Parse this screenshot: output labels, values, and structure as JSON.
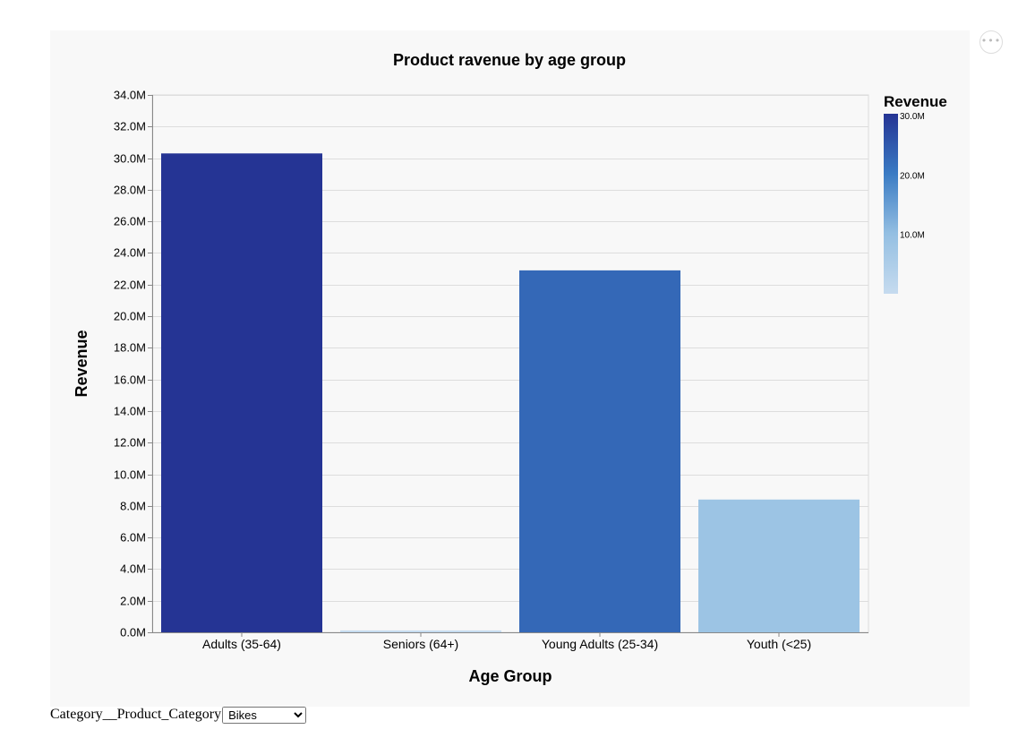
{
  "chart_data": {
    "type": "bar",
    "title": "Product ravenue by age group",
    "xlabel": "Age Group",
    "ylabel": "Revenue",
    "categories": [
      "Adults (35-64)",
      "Seniors (64+)",
      "Young Adults (25-34)",
      "Youth (<25)"
    ],
    "values": [
      30300000,
      120000,
      22900000,
      8400000
    ],
    "ylim": [
      0,
      34000000
    ],
    "yticks": [
      0,
      2000000,
      4000000,
      6000000,
      8000000,
      10000000,
      12000000,
      14000000,
      16000000,
      18000000,
      20000000,
      22000000,
      24000000,
      26000000,
      28000000,
      30000000,
      32000000,
      34000000
    ],
    "ytick_labels": [
      "0.0M",
      "2.0M",
      "4.0M",
      "6.0M",
      "8.0M",
      "10.0M",
      "12.0M",
      "14.0M",
      "16.0M",
      "18.0M",
      "20.0M",
      "22.0M",
      "24.0M",
      "26.0M",
      "28.0M",
      "30.0M",
      "32.0M",
      "34.0M"
    ],
    "grid": true,
    "legend": {
      "title": "Revenue",
      "placement": "right",
      "type": "gradient",
      "range": [
        0,
        30300000
      ],
      "ticks": [
        30000000,
        20000000,
        10000000
      ],
      "tick_labels": [
        "30.0M",
        "20.0M",
        "10.0M"
      ],
      "colors": [
        "#c6dbef",
        "#94bfe2",
        "#3a7bc4",
        "#253494"
      ]
    }
  },
  "actions_menu": {
    "icon": "more-horizontal-icon",
    "glyph": "•••"
  },
  "filter": {
    "label": "Category__Product_Category",
    "selected": "Bikes"
  }
}
